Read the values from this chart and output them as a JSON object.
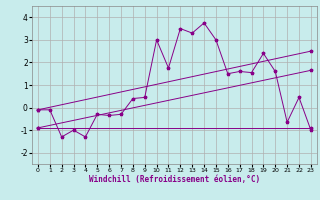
{
  "xlabel": "Windchill (Refroidissement éolien,°C)",
  "background_color": "#c8ecec",
  "grid_color": "#b0b0b0",
  "line_color": "#880088",
  "xlim": [
    -0.5,
    23.5
  ],
  "ylim": [
    -2.5,
    4.5
  ],
  "xticks": [
    0,
    1,
    2,
    3,
    4,
    5,
    6,
    7,
    8,
    9,
    10,
    11,
    12,
    13,
    14,
    15,
    16,
    17,
    18,
    19,
    20,
    21,
    22,
    23
  ],
  "yticks": [
    -2,
    -1,
    0,
    1,
    2,
    3,
    4
  ],
  "line1_x": [
    0,
    1,
    2,
    3,
    4,
    5,
    6,
    7,
    8,
    9,
    10,
    11,
    12,
    13,
    14,
    15,
    16,
    17,
    18,
    19,
    20,
    21,
    22,
    23
  ],
  "line1_y": [
    -0.1,
    -0.1,
    -1.3,
    -1.0,
    -1.3,
    -0.3,
    -0.35,
    -0.3,
    0.4,
    0.45,
    3.0,
    1.75,
    3.5,
    3.3,
    3.75,
    3.0,
    1.5,
    1.6,
    1.55,
    2.4,
    1.6,
    -0.65,
    0.45,
    -1.0
  ],
  "line2_x": [
    0,
    23
  ],
  "line2_y": [
    -0.9,
    -0.9
  ],
  "line3_x": [
    0,
    23
  ],
  "line3_y": [
    -0.1,
    2.5
  ],
  "line4_x": [
    0,
    23
  ],
  "line4_y": [
    -0.9,
    1.65
  ]
}
